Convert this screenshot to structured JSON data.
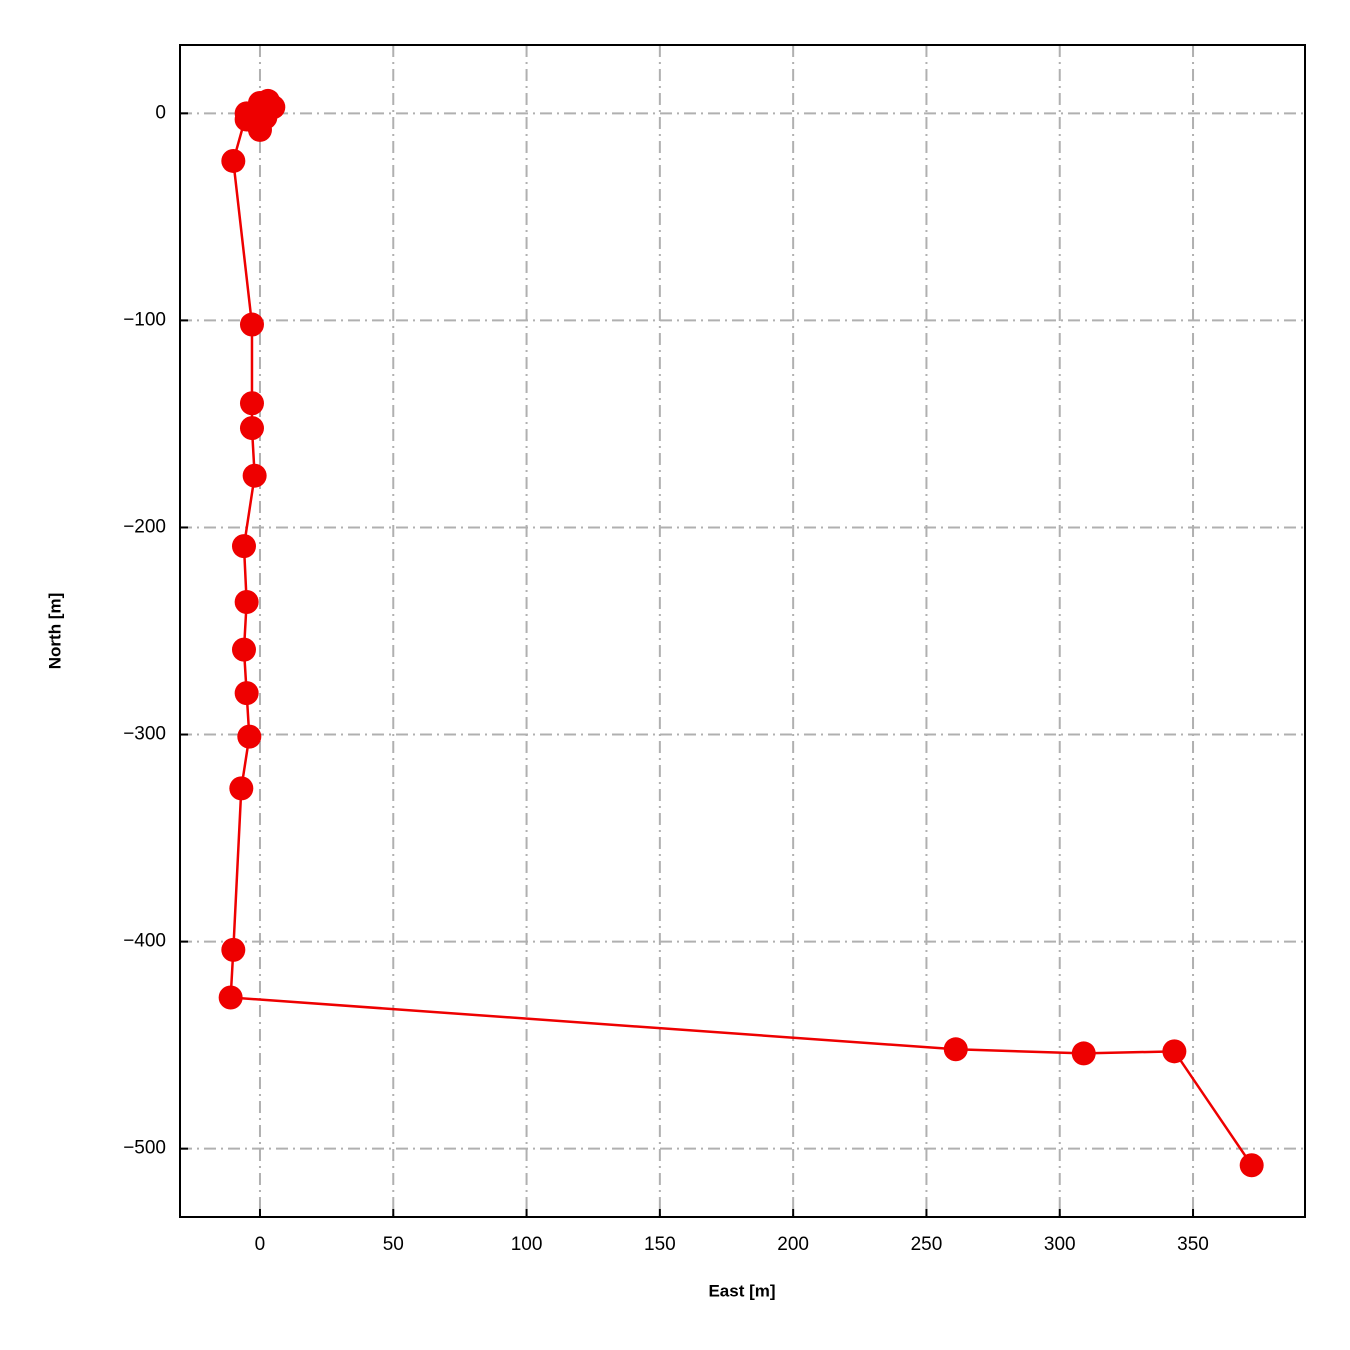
{
  "chart_data": {
    "type": "line",
    "x_label": "East [m]",
    "y_label": "North [m]",
    "x": [
      0,
      3,
      5,
      2,
      0,
      -2,
      -5,
      -5,
      -10,
      -3,
      -3,
      -3,
      -2,
      -6,
      -5,
      -6,
      -5,
      -4,
      -7,
      -10,
      -11,
      261,
      309,
      343,
      372
    ],
    "values": [
      5,
      6,
      3,
      -2,
      -8,
      -4,
      -3,
      0,
      -23,
      -102,
      -140,
      -152,
      -175,
      -209,
      -236,
      -259,
      -280,
      -301,
      -326,
      -404,
      -427,
      -452,
      -454,
      -453,
      -508
    ],
    "color": "#ee0000",
    "xlim": [
      -30,
      392
    ],
    "ylim": [
      -533,
      33
    ],
    "xticks": [
      0,
      50,
      100,
      150,
      200,
      250,
      300,
      350
    ],
    "yticks": [
      0,
      {
        "value": -100,
        "label": "−100"
      },
      {
        "value": -200,
        "label": "−200"
      },
      {
        "value": -300,
        "label": "−300"
      },
      {
        "value": -400,
        "label": "−400"
      },
      {
        "value": -500,
        "label": "−500"
      }
    ],
    "grid": true
  }
}
